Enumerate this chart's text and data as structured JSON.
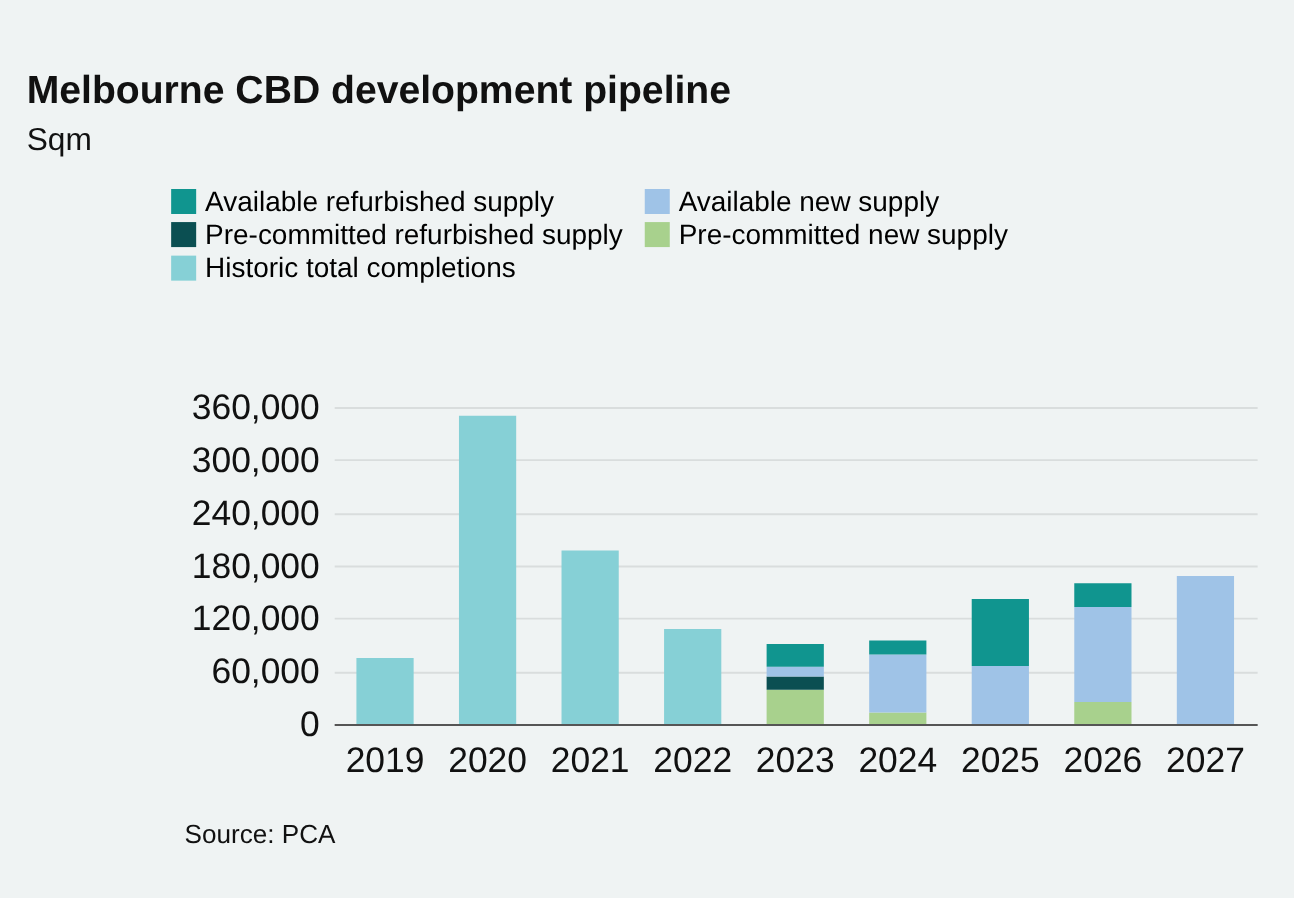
{
  "chart_data": {
    "type": "bar",
    "title": "Melbourne CBD development pipeline",
    "subtitle": "Sqm",
    "categories": [
      "2019",
      "2020",
      "2021",
      "2022",
      "2023",
      "2024",
      "2025",
      "2026",
      "2027"
    ],
    "stacked": true,
    "series": [
      {
        "name": "Historic total completions",
        "color": "#86d0d6",
        "values": [
          75000,
          350000,
          197000,
          108000,
          null,
          null,
          null,
          null,
          null
        ]
      },
      {
        "name": "Pre-committed new supply",
        "color": "#a8d18d",
        "values": [
          null,
          null,
          null,
          null,
          39000,
          13000,
          null,
          25000,
          null
        ]
      },
      {
        "name": "Pre-committed refurbished supply",
        "color": "#0b4f52",
        "values": [
          null,
          null,
          null,
          null,
          15000,
          null,
          null,
          null,
          null
        ]
      },
      {
        "name": "Available new supply",
        "color": "#9fc3e7",
        "values": [
          null,
          null,
          null,
          null,
          11000,
          66000,
          66000,
          108000,
          168000
        ]
      },
      {
        "name": "Available refurbished supply",
        "color": "#10958f",
        "values": [
          null,
          null,
          null,
          null,
          26000,
          16000,
          76000,
          27000,
          null
        ]
      }
    ],
    "ylim": [
      0,
      360000
    ],
    "yticks": [
      0,
      {
        "value": 60000,
        "label": "60,000"
      },
      {
        "value": 120000,
        "label": "120,000"
      },
      {
        "value": 180000,
        "label": "180,000"
      },
      {
        "value": 240000,
        "label": "240,000"
      },
      {
        "value": 300000,
        "label": "300,000"
      },
      {
        "value": 360000,
        "label": "360,000"
      }
    ],
    "grid": "y",
    "legend": "top",
    "annotations": [
      "Source: PCA"
    ]
  }
}
